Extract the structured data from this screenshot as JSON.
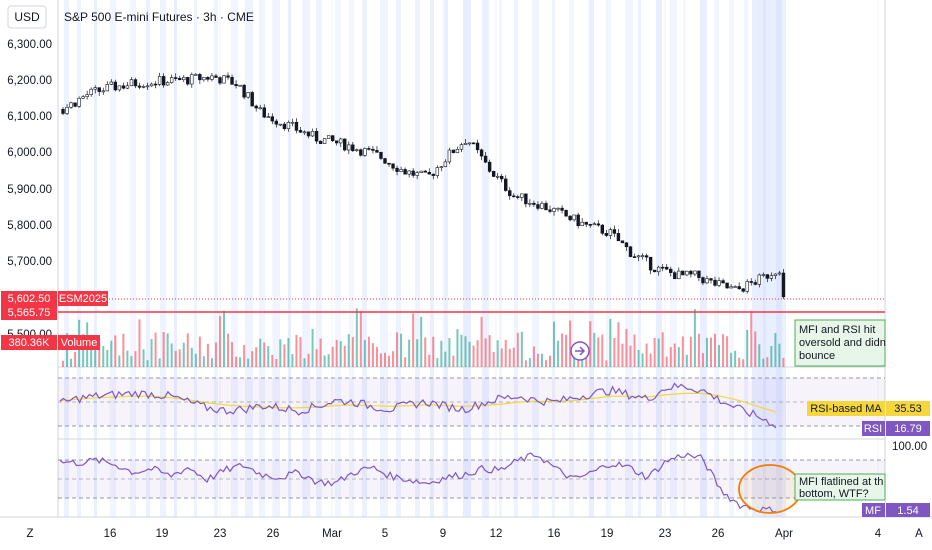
{
  "header": {
    "currency": "USD",
    "title": "S&P 500 E-mini Futures · 3h · CME"
  },
  "colors": {
    "up": "#089981",
    "down": "#f23645",
    "rsi": "#7e57c2",
    "rsi_ma": "#f5d63d",
    "mfi": "#7e57c2",
    "highlight": "#2962ff",
    "note_bg": "#e8f5e9",
    "note_border": "#4caf50"
  },
  "price_badges": [
    {
      "label": "5,602.50",
      "tag": "ESM2025"
    },
    {
      "label": "5,565.75"
    },
    {
      "label": "380.36K",
      "tag": "Volume"
    }
  ],
  "price_axis_ticks": [
    "6,300.00",
    "6,200.00",
    "6,100.00",
    "6,000.00",
    "5,900.00",
    "5,800.00",
    "5,700.00",
    "5,500.00"
  ],
  "x_axis_ticks": [
    "16",
    "19",
    "23",
    "26",
    "Mar",
    "5",
    "9",
    "12",
    "16",
    "19",
    "23",
    "26",
    "Apr",
    "4"
  ],
  "annotations": {
    "rsi_note": "MFI and RSI hit oversold and didn bounce",
    "mfi_note": "MFI flatlined at th bottom, WTF?"
  },
  "indicators": {
    "rsi_ma_label": "RSI-based MA",
    "rsi_ma_value": "35.53",
    "rsi_label": "RSI",
    "rsi_value": "16.79",
    "mfi_level": "100.00",
    "mfi_label": "MF",
    "mfi_value": "1.54"
  },
  "footer": {
    "left": "Z",
    "right": "A"
  },
  "chart_data": {
    "type": "candlestick",
    "price_ylim": [
      5500,
      6300
    ],
    "close_path": [
      [
        0,
        6120
      ],
      [
        0.03,
        6160
      ],
      [
        0.06,
        6180
      ],
      [
        0.1,
        6195
      ],
      [
        0.15,
        6200
      ],
      [
        0.19,
        6210
      ],
      [
        0.22,
        6190
      ],
      [
        0.25,
        6110
      ],
      [
        0.28,
        6080
      ],
      [
        0.32,
        6040
      ],
      [
        0.36,
        6020
      ],
      [
        0.4,
        5990
      ],
      [
        0.43,
        5950
      ],
      [
        0.46,
        5930
      ],
      [
        0.49,
        6000
      ],
      [
        0.51,
        6040
      ],
      [
        0.54,
        5950
      ],
      [
        0.57,
        5880
      ],
      [
        0.6,
        5860
      ],
      [
        0.63,
        5830
      ],
      [
        0.66,
        5800
      ],
      [
        0.69,
        5780
      ],
      [
        0.72,
        5720
      ],
      [
        0.75,
        5680
      ],
      [
        0.78,
        5660
      ],
      [
        0.8,
        5660
      ],
      [
        0.82,
        5640
      ],
      [
        0.85,
        5620
      ],
      [
        0.88,
        5650
      ],
      [
        0.91,
        5690
      ]
    ],
    "rsi_series": [
      48,
      55,
      58,
      60,
      62,
      61,
      58,
      50,
      42,
      38,
      40,
      45,
      42,
      38,
      44,
      52,
      50,
      44,
      40,
      46,
      50,
      44,
      40,
      48,
      55,
      58,
      52,
      50,
      56,
      62,
      66,
      60,
      54,
      70,
      72,
      66,
      52,
      40,
      30,
      18
    ],
    "rsi_ma_series": [
      52,
      54,
      56,
      57,
      58,
      58,
      56,
      53,
      49,
      46,
      44,
      43,
      42,
      42,
      43,
      45,
      46,
      45,
      44,
      45,
      46,
      45,
      44,
      45,
      47,
      50,
      51,
      51,
      52,
      55,
      58,
      58,
      57,
      60,
      62,
      62,
      58,
      52,
      44,
      36
    ],
    "mfi_series": [
      70,
      68,
      72,
      66,
      55,
      60,
      50,
      62,
      45,
      58,
      65,
      52,
      48,
      55,
      42,
      40,
      55,
      62,
      50,
      45,
      40,
      48,
      52,
      60,
      58,
      72,
      80,
      60,
      45,
      55,
      68,
      62,
      48,
      70,
      80,
      74,
      30,
      10,
      4,
      2
    ],
    "annotations": [
      "ESM2025",
      "Volume",
      "RSI-based MA",
      "RSI",
      "MF"
    ]
  }
}
